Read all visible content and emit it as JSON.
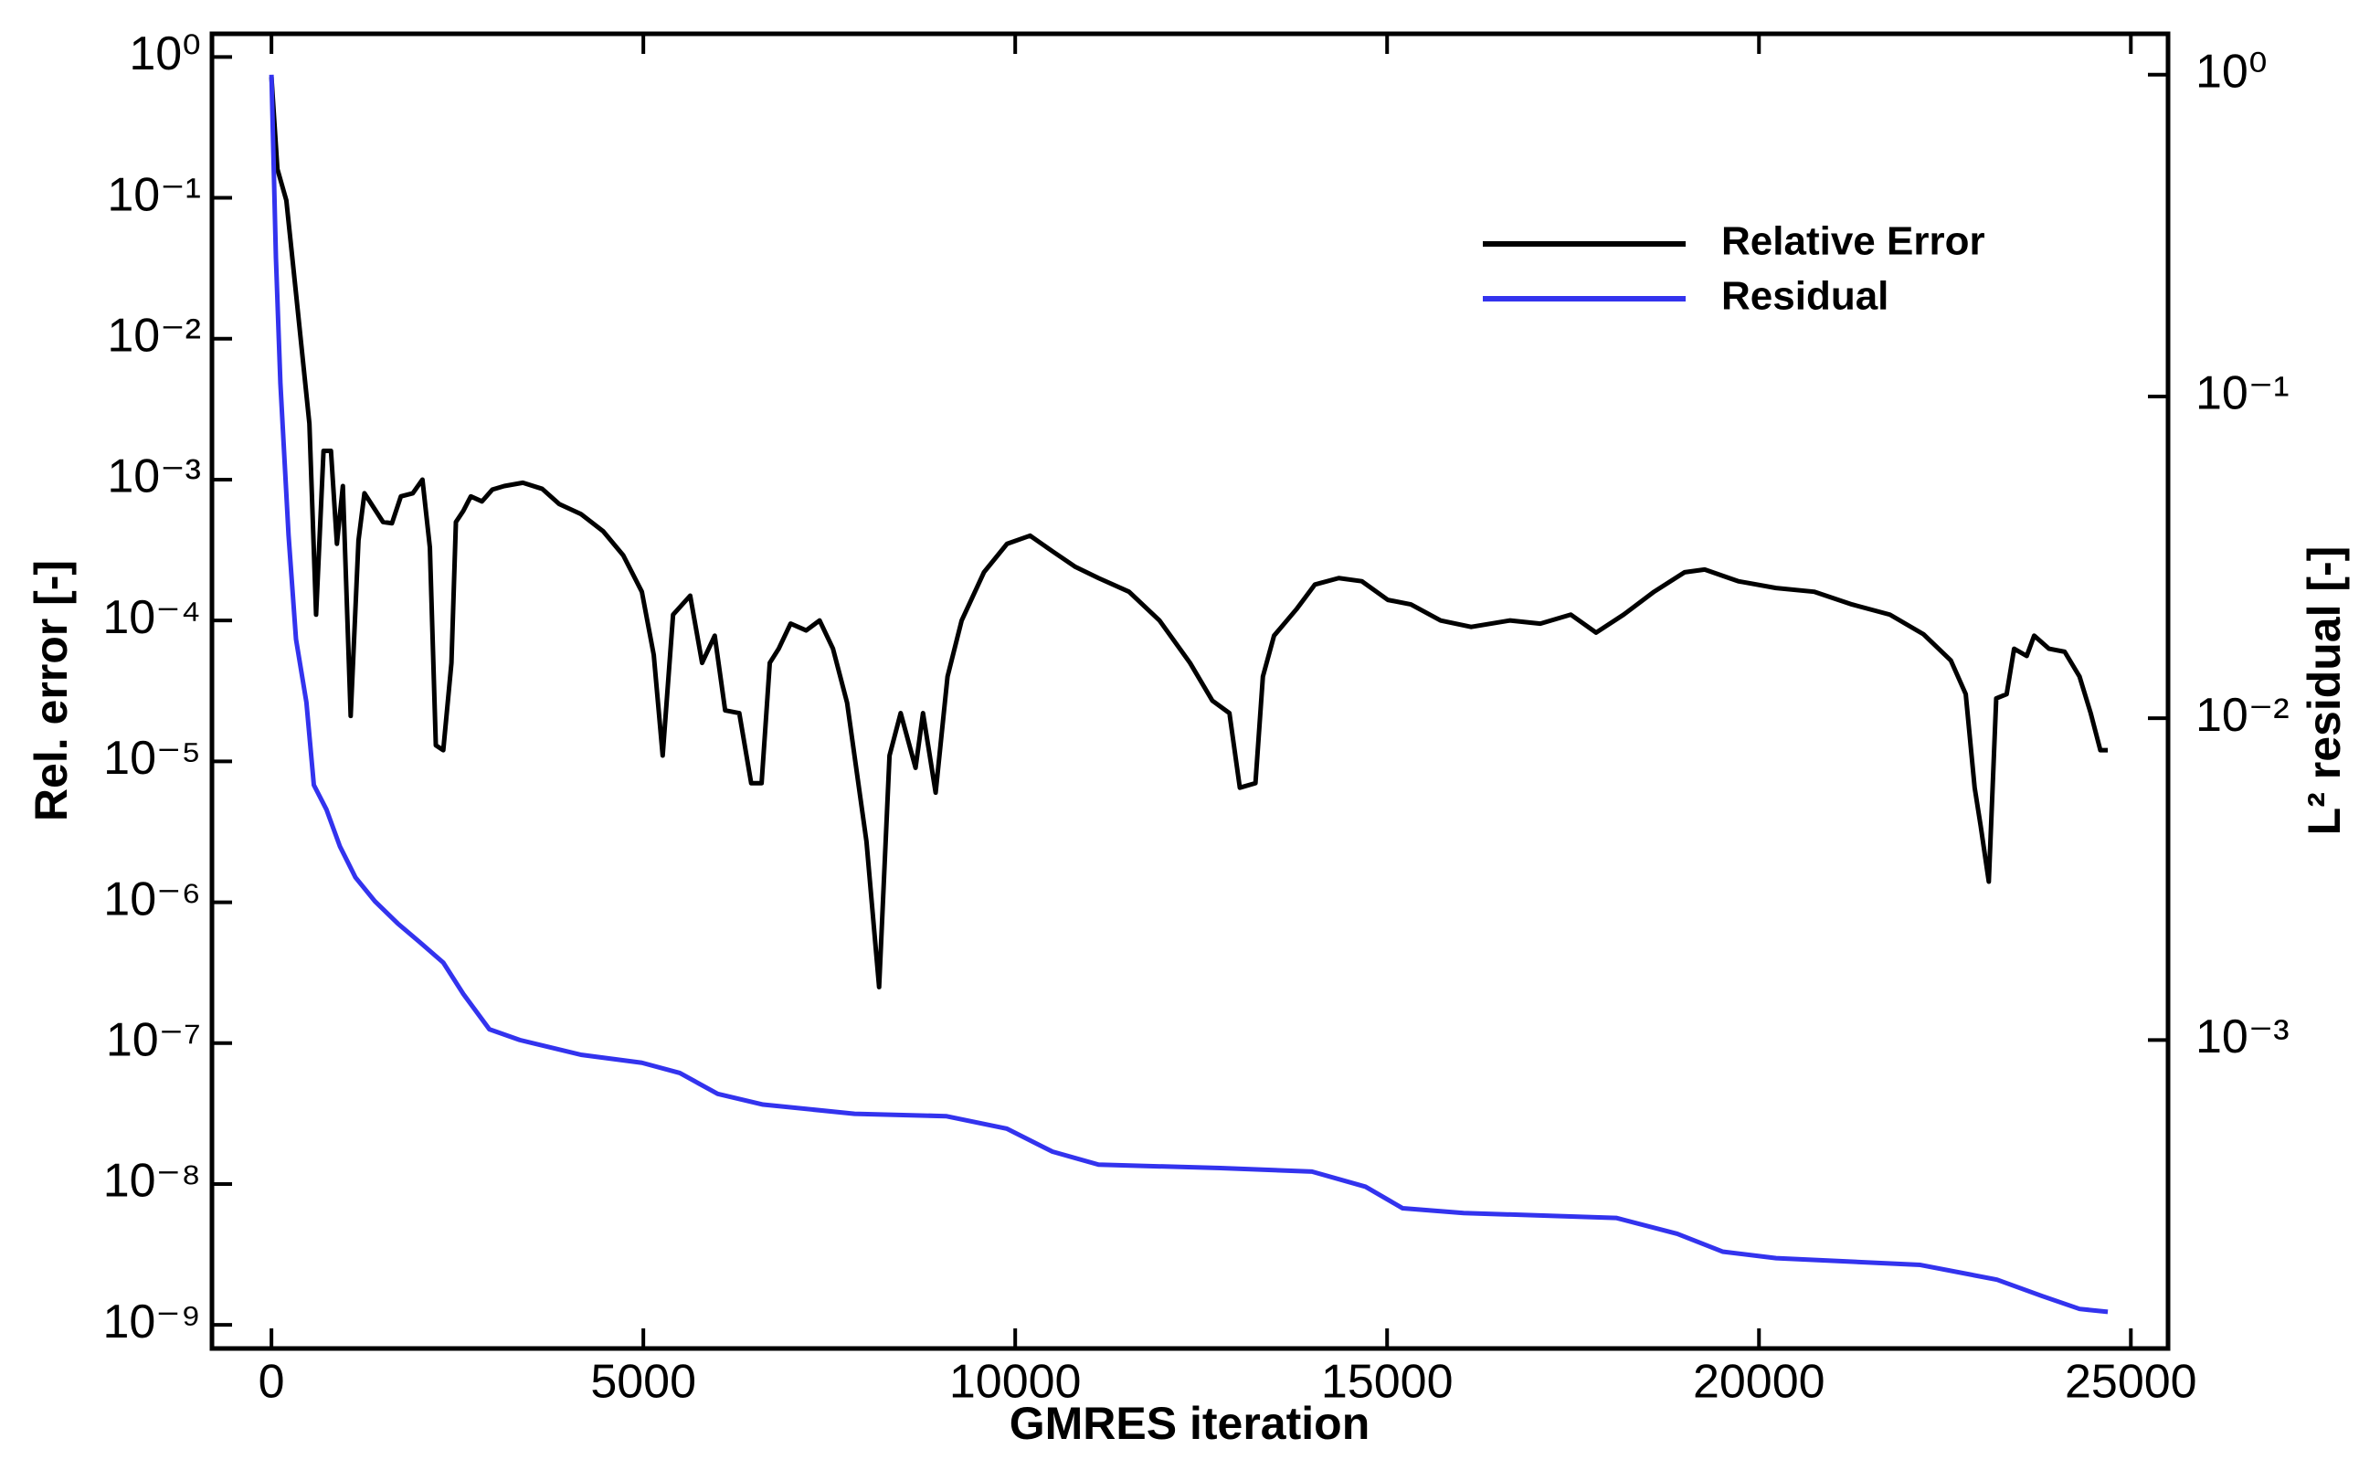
{
  "chart_data": {
    "type": "line",
    "x_label": "GMRES iteration",
    "y_label": "Rel. error [-]",
    "y2_label": "L² residual [-]",
    "xlim": [
      -800,
      25500
    ],
    "xticks": [
      0,
      5000,
      10000,
      15000,
      20000,
      25000
    ],
    "ylim": [
      6.8e-10,
      1.46
    ],
    "y_log": true,
    "yticks": [
      {
        "value": 1,
        "label": "10⁰"
      },
      {
        "value": 0.1,
        "label": "10⁻¹"
      },
      {
        "value": 0.01,
        "label": "10⁻²"
      },
      {
        "value": 0.001,
        "label": "10⁻³"
      },
      {
        "value": 0.0001,
        "label": "10⁻⁴"
      },
      {
        "value": 1e-05,
        "label": "10⁻⁵"
      },
      {
        "value": 1e-06,
        "label": "10⁻⁶"
      },
      {
        "value": 1e-07,
        "label": "10⁻⁷"
      },
      {
        "value": 1e-08,
        "label": "10⁻⁸"
      },
      {
        "value": 1e-09,
        "label": "10⁻⁹"
      }
    ],
    "y2lim": [
      0.00011,
      1.34
    ],
    "y2_log": true,
    "y2ticks": [
      {
        "value": 1,
        "label": "10⁰"
      },
      {
        "value": 0.1,
        "label": "10⁻¹"
      },
      {
        "value": 0.01,
        "label": "10⁻²"
      },
      {
        "value": 0.001,
        "label": "10⁻³"
      }
    ],
    "legend_position": "upper right",
    "series": [
      {
        "name": "Relative Error",
        "color": "#000000",
        "x": [
          0,
          80,
          200,
          330,
          510,
          600,
          700,
          800,
          880,
          960,
          1065,
          1170,
          1250,
          1500,
          1620,
          1740,
          1900,
          2030,
          2130,
          2210,
          2310,
          2420,
          2480,
          2580,
          2680,
          2830,
          2970,
          3130,
          3380,
          3640,
          3870,
          4160,
          4460,
          4730,
          4980,
          5140,
          5260,
          5400,
          5630,
          5790,
          5960,
          6100,
          6290,
          6450,
          6590,
          6700,
          6820,
          6980,
          7190,
          7370,
          7550,
          7740,
          8000,
          8170,
          8310,
          8460,
          8660,
          8760,
          8930,
          9090,
          9280,
          9580,
          9890,
          10200,
          10500,
          10810,
          11120,
          11530,
          11940,
          12350,
          12650,
          12880,
          13020,
          13230,
          13330,
          13480,
          13780,
          14030,
          14350,
          14660,
          15010,
          15320,
          15720,
          16130,
          16650,
          17060,
          17470,
          17810,
          18180,
          18590,
          19000,
          19270,
          19720,
          20230,
          20740,
          21250,
          21760,
          22210,
          22580,
          22780,
          22900,
          22980,
          23090,
          23190,
          23330,
          23430,
          23600,
          23700,
          23900,
          24110,
          24310,
          24460,
          24590,
          24690
        ],
        "values": [
          0.72,
          0.16,
          0.096,
          0.021,
          0.0025,
          0.00011,
          0.0016,
          0.0016,
          0.00035,
          0.0009,
          2.1e-05,
          0.00037,
          0.0008,
          0.0005,
          0.00049,
          0.00076,
          0.0008,
          0.001,
          0.00033,
          1.3e-05,
          1.2e-05,
          5e-05,
          0.0005,
          0.0006,
          0.00076,
          0.0007,
          0.00085,
          0.0009,
          0.00095,
          0.00086,
          0.00067,
          0.00057,
          0.00043,
          0.00029,
          0.00016,
          5.7e-05,
          1.1e-05,
          0.00011,
          0.00015,
          5e-05,
          7.8e-05,
          2.3e-05,
          2.2e-05,
          7e-06,
          7e-06,
          5e-05,
          6.3e-05,
          9.5e-05,
          8.5e-05,
          0.0001,
          6.3e-05,
          2.6e-05,
          2.7e-06,
          2.5e-07,
          1.1e-05,
          2.2e-05,
          9e-06,
          2.2e-05,
          6e-06,
          4e-05,
          0.0001,
          0.00022,
          0.00035,
          0.0004,
          0.00031,
          0.00024,
          0.0002,
          0.00016,
          0.0001,
          5e-05,
          2.7e-05,
          2.2e-05,
          6.5e-06,
          7e-06,
          4e-05,
          7.8e-05,
          0.00012,
          0.00018,
          0.0002,
          0.00019,
          0.00014,
          0.00013,
          0.0001,
          9e-05,
          0.0001,
          9.5e-05,
          0.00011,
          8.2e-05,
          0.00011,
          0.00016,
          0.00022,
          0.00023,
          0.00019,
          0.00017,
          0.00016,
          0.00013,
          0.00011,
          8e-05,
          5.2e-05,
          3e-05,
          6.5e-06,
          3.5e-06,
          1.4e-06,
          2.8e-05,
          3e-05,
          6.3e-05,
          5.6e-05,
          7.8e-05,
          6.3e-05,
          6e-05,
          4e-05,
          2.2e-05,
          1.2e-05,
          1.2e-05
        ]
      },
      {
        "name": "Residual",
        "color": "#3333ee",
        "axis": "y2",
        "x": [
          0,
          60,
          120,
          230,
          330,
          470,
          570,
          740,
          920,
          1130,
          1390,
          1700,
          2010,
          2310,
          2580,
          2930,
          3340,
          4160,
          4980,
          5490,
          6000,
          6610,
          7840,
          9070,
          9890,
          10500,
          11120,
          12760,
          13990,
          14710,
          15210,
          16030,
          18080,
          18900,
          19510,
          20230,
          22170,
          23200,
          23810,
          24310,
          24690
        ],
        "values": [
          1.0,
          0.27,
          0.11,
          0.037,
          0.0176,
          0.0112,
          0.0062,
          0.0052,
          0.004,
          0.0032,
          0.0027,
          0.0023,
          0.002,
          0.00174,
          0.00139,
          0.00108,
          0.001,
          0.0009,
          0.00085,
          0.00079,
          0.00068,
          0.00063,
          0.00059,
          0.00058,
          0.00053,
          0.00045,
          0.00041,
          0.0004,
          0.00039,
          0.00035,
          0.0003,
          0.00029,
          0.00028,
          0.00025,
          0.00022,
          0.00021,
          0.0002,
          0.00018,
          0.00016,
          0.000146,
          0.000143
        ]
      }
    ]
  }
}
